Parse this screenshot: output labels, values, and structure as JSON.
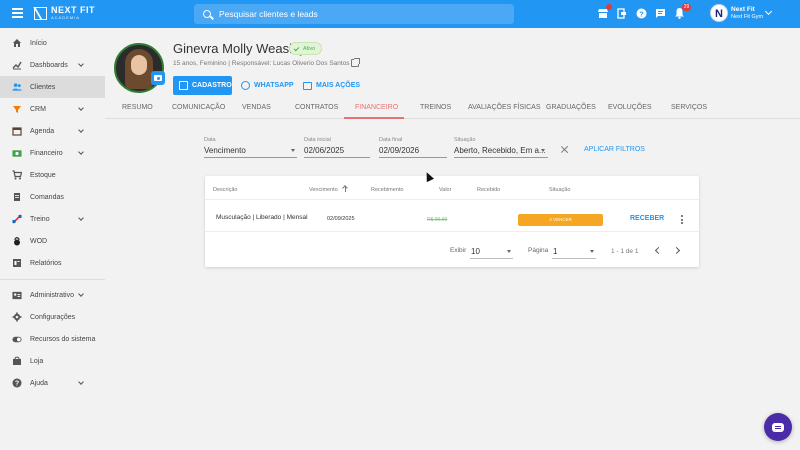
{
  "brand": {
    "name": "NEXT FIT",
    "sub": "ACADEMIA"
  },
  "search": {
    "placeholder": "Pesquisar clientes e leads"
  },
  "topbar": {
    "notification_count": "29",
    "user_name": "Next Fit",
    "user_gym": "Next Fit Gym",
    "avatar_letter": "N",
    "icons": [
      "store-icon",
      "logout-icon",
      "help-icon",
      "chat-icon",
      "bell-icon"
    ]
  },
  "sidebar": {
    "items": [
      {
        "label": "Início",
        "icon": "home-icon"
      },
      {
        "label": "Dashboards",
        "icon": "chart-icon",
        "expandable": true
      },
      {
        "label": "Clientes",
        "icon": "people-icon",
        "active": true
      },
      {
        "label": "CRM",
        "icon": "crm-icon",
        "expandable": true
      },
      {
        "label": "Agenda",
        "icon": "calendar-icon",
        "expandable": true
      },
      {
        "label": "Financeiro",
        "icon": "money-icon",
        "expandable": true
      },
      {
        "label": "Estoque",
        "icon": "cart-icon"
      },
      {
        "label": "Comandas",
        "icon": "receipt-icon"
      },
      {
        "label": "Treino",
        "icon": "dumbbell-icon",
        "expandable": true
      },
      {
        "label": "WOD",
        "icon": "kettlebell-icon"
      },
      {
        "label": "Relatórios",
        "icon": "report-icon"
      },
      {
        "label": "Administrativo",
        "icon": "admin-icon",
        "expandable": true
      },
      {
        "label": "Configurações",
        "icon": "gear-icon"
      },
      {
        "label": "Recursos do sistema",
        "icon": "toggle-icon"
      },
      {
        "label": "Loja",
        "icon": "bag-icon"
      },
      {
        "label": "Ajuda",
        "icon": "help-icon",
        "expandable": true
      }
    ]
  },
  "client": {
    "name": "Ginevra Molly Weasley",
    "status": "Ativo",
    "info": "15 anos, Feminino | Responsável: Lucas Oliverio Dos Santos"
  },
  "actions": {
    "cadastro": "CADASTRO",
    "whatsapp": "WHATSAPP",
    "more": "MAIS AÇÕES"
  },
  "tabs": [
    "RESUMO",
    "COMUNICAÇÃO",
    "VENDAS",
    "CONTRATOS",
    "FINANCEIRO",
    "TREINOS",
    "AVALIAÇÕES FÍSICAS",
    "GRADUAÇÕES",
    "EVOLUÇÕES",
    "SERVIÇOS"
  ],
  "active_tab": "FINANCEIRO",
  "filters": {
    "date": {
      "label": "Data",
      "value": "Vencimento"
    },
    "start": {
      "label": "Data inicial",
      "value": "02/06/2025"
    },
    "end": {
      "label": "Data final",
      "value": "02/09/2026"
    },
    "situation": {
      "label": "Situação",
      "value": "Aberto, Recebido, Em a..."
    },
    "apply": "APLICAR FILTROS"
  },
  "table": {
    "headers": [
      "Descrição",
      "Vencimento",
      "Recebimento",
      "Valor",
      "Recebido",
      "Situação"
    ],
    "rows": [
      {
        "description": "Musculação | Liberado | Mensal",
        "due": "02/09/2025",
        "received_on": "",
        "value": "R$ 99,90",
        "received": "",
        "situation": "A VENCER",
        "action": "RECEBER"
      }
    ]
  },
  "pagination": {
    "show_label": "Exibir",
    "show_value": "10",
    "page_label": "Página",
    "page_value": "1",
    "range": "1 - 1 de 1"
  },
  "colors": {
    "primary": "#2196f3",
    "active_tab": "#e57373",
    "status_chip": "#4caf50",
    "situation": "#f5a623",
    "chat_fab": "#4a2ca8"
  }
}
